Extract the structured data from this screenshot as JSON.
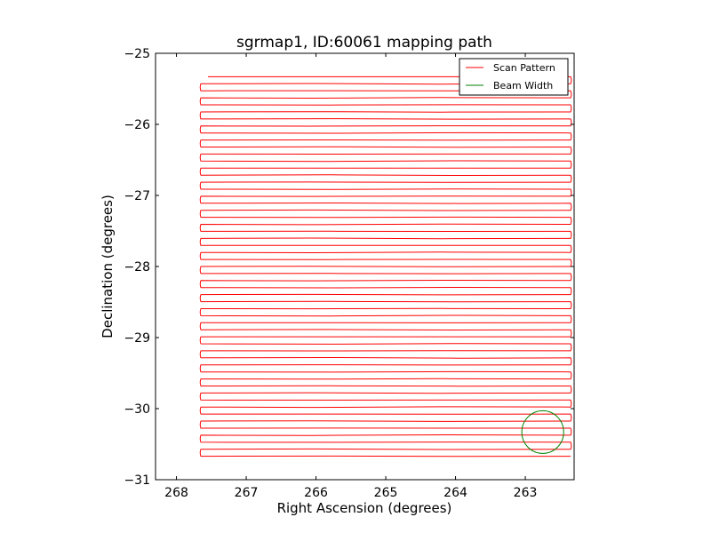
{
  "chart_data": {
    "type": "line",
    "title": "sgrmap1, ID:60061 mapping path",
    "xlabel": "Right Ascension (degrees)",
    "ylabel": "Declination (degrees)",
    "xlim": [
      268.3,
      262.3
    ],
    "ylim": [
      -31,
      -25
    ],
    "xticks": [
      {
        "value": 268,
        "label": "268"
      },
      {
        "value": 267,
        "label": "267"
      },
      {
        "value": 266,
        "label": "266"
      },
      {
        "value": 265,
        "label": "265"
      },
      {
        "value": 264,
        "label": "264"
      },
      {
        "value": 263,
        "label": "263"
      }
    ],
    "yticks": [
      {
        "value": -25,
        "label": "−25"
      },
      {
        "value": -26,
        "label": "−26"
      },
      {
        "value": -27,
        "label": "−27"
      },
      {
        "value": -28,
        "label": "−28"
      },
      {
        "value": -29,
        "label": "−29"
      },
      {
        "value": -30,
        "label": "−30"
      },
      {
        "value": -31,
        "label": "−31"
      }
    ],
    "grid": false,
    "legend_position": "top-right",
    "series": [
      {
        "name": "Scan Pattern",
        "color": "#ff0000",
        "pattern": "boustrophedon",
        "ra_range": [
          262.35,
          267.65
        ],
        "dec_start": -25.33,
        "dec_end": -30.67,
        "rows": 55
      },
      {
        "name": "Beam Width",
        "color": "#008000",
        "shape": "circle",
        "center": [
          262.75,
          -30.33
        ],
        "radius_deg": 0.3
      }
    ]
  }
}
